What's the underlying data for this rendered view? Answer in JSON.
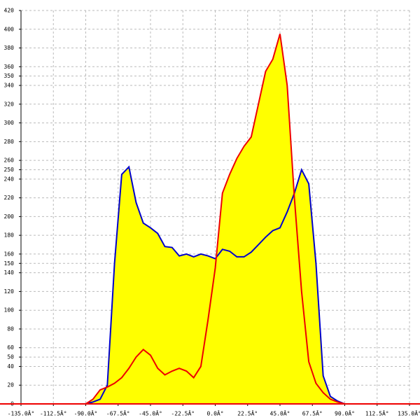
{
  "chart_data": {
    "type": "area",
    "x": [
      -90,
      -85,
      -80,
      -75,
      -70,
      -65,
      -60,
      -55,
      -50,
      -45,
      -40,
      -35,
      -30,
      -25,
      -20,
      -15,
      -10,
      -5,
      0,
      5,
      10,
      15,
      20,
      25,
      30,
      35,
      40,
      45,
      50,
      55,
      60,
      65,
      70,
      75,
      80,
      85,
      90
    ],
    "series": [
      {
        "color": "#0000cc",
        "fill": "#ffff00",
        "values": [
          0,
          2,
          5,
          20,
          150,
          245,
          253,
          215,
          193,
          188,
          182,
          168,
          167,
          158,
          160,
          157,
          160,
          158,
          155,
          165,
          163,
          157,
          157,
          162,
          170,
          178,
          185,
          188,
          205,
          225,
          250,
          235,
          150,
          30,
          8,
          3,
          0
        ]
      },
      {
        "color": "#ee0000",
        "fill": "#ffff00",
        "values": [
          0,
          5,
          15,
          18,
          22,
          28,
          38,
          50,
          58,
          52,
          38,
          31,
          35,
          38,
          35,
          28,
          40,
          90,
          145,
          225,
          245,
          262,
          275,
          285,
          320,
          355,
          368,
          395,
          340,
          220,
          120,
          45,
          22,
          12,
          5,
          2,
          0
        ]
      }
    ],
    "xlim": [
      -135,
      135
    ],
    "xticks": [
      {
        "value": -135,
        "label": "-135.0Â°"
      },
      {
        "value": -112.5,
        "label": "-112.5Â°"
      },
      {
        "value": -90,
        "label": "-90.0Â°"
      },
      {
        "value": -67.5,
        "label": "-67.5Â°"
      },
      {
        "value": -45,
        "label": "-45.0Â°"
      },
      {
        "value": -22.5,
        "label": "-22.5Â°"
      },
      {
        "value": 0,
        "label": "0.0Â°"
      },
      {
        "value": 22.5,
        "label": "22.5Â°"
      },
      {
        "value": 45,
        "label": "45.0Â°"
      },
      {
        "value": 67.5,
        "label": "67.5Â°"
      },
      {
        "value": 90,
        "label": "90.0Â°"
      },
      {
        "value": 112.5,
        "label": "112.5Â°"
      },
      {
        "value": 135,
        "label": "135.0Â°"
      }
    ],
    "ylim": [
      0,
      420
    ],
    "yticks": [
      0,
      20,
      40,
      50,
      60,
      80,
      100,
      120,
      140,
      150,
      160,
      180,
      200,
      220,
      240,
      250,
      260,
      280,
      300,
      320,
      340,
      350,
      360,
      380,
      400,
      420
    ],
    "grid": true
  }
}
